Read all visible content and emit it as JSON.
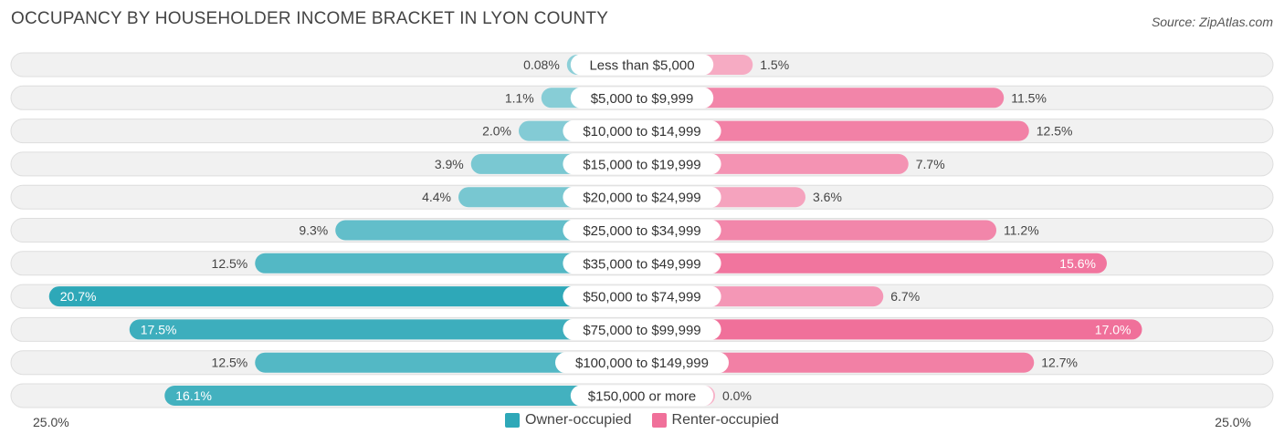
{
  "chart_data": {
    "type": "bar",
    "orientation": "diverging-horizontal",
    "title": "OCCUPANCY BY HOUSEHOLDER INCOME BRACKET IN LYON COUNTY",
    "source": "Source: ZipAtlas.com",
    "categories": [
      "Less than $5,000",
      "$5,000 to $9,999",
      "$10,000 to $14,999",
      "$15,000 to $19,999",
      "$20,000 to $24,999",
      "$25,000 to $34,999",
      "$35,000 to $49,999",
      "$50,000 to $74,999",
      "$75,000 to $99,999",
      "$100,000 to $149,999",
      "$150,000 or more"
    ],
    "series": [
      {
        "name": "Owner-occupied",
        "color": "#2ea8b8",
        "values": [
          0.08,
          1.1,
          2.0,
          3.9,
          4.4,
          9.3,
          12.5,
          20.7,
          17.5,
          12.5,
          16.1
        ],
        "labels": [
          "0.08%",
          "1.1%",
          "2.0%",
          "3.9%",
          "4.4%",
          "9.3%",
          "12.5%",
          "20.7%",
          "17.5%",
          "12.5%",
          "16.1%"
        ]
      },
      {
        "name": "Renter-occupied",
        "color": "#f0709a",
        "values": [
          1.5,
          11.5,
          12.5,
          7.7,
          3.6,
          11.2,
          15.6,
          6.7,
          17.0,
          12.7,
          0.0
        ],
        "labels": [
          "1.5%",
          "11.5%",
          "12.5%",
          "7.7%",
          "3.6%",
          "11.2%",
          "15.6%",
          "6.7%",
          "17.0%",
          "12.7%",
          "0.0%"
        ]
      }
    ],
    "xlim": [
      -25,
      25
    ],
    "axis_left_label": "25.0%",
    "axis_right_label": "25.0%",
    "legend_position": "bottom-center"
  }
}
